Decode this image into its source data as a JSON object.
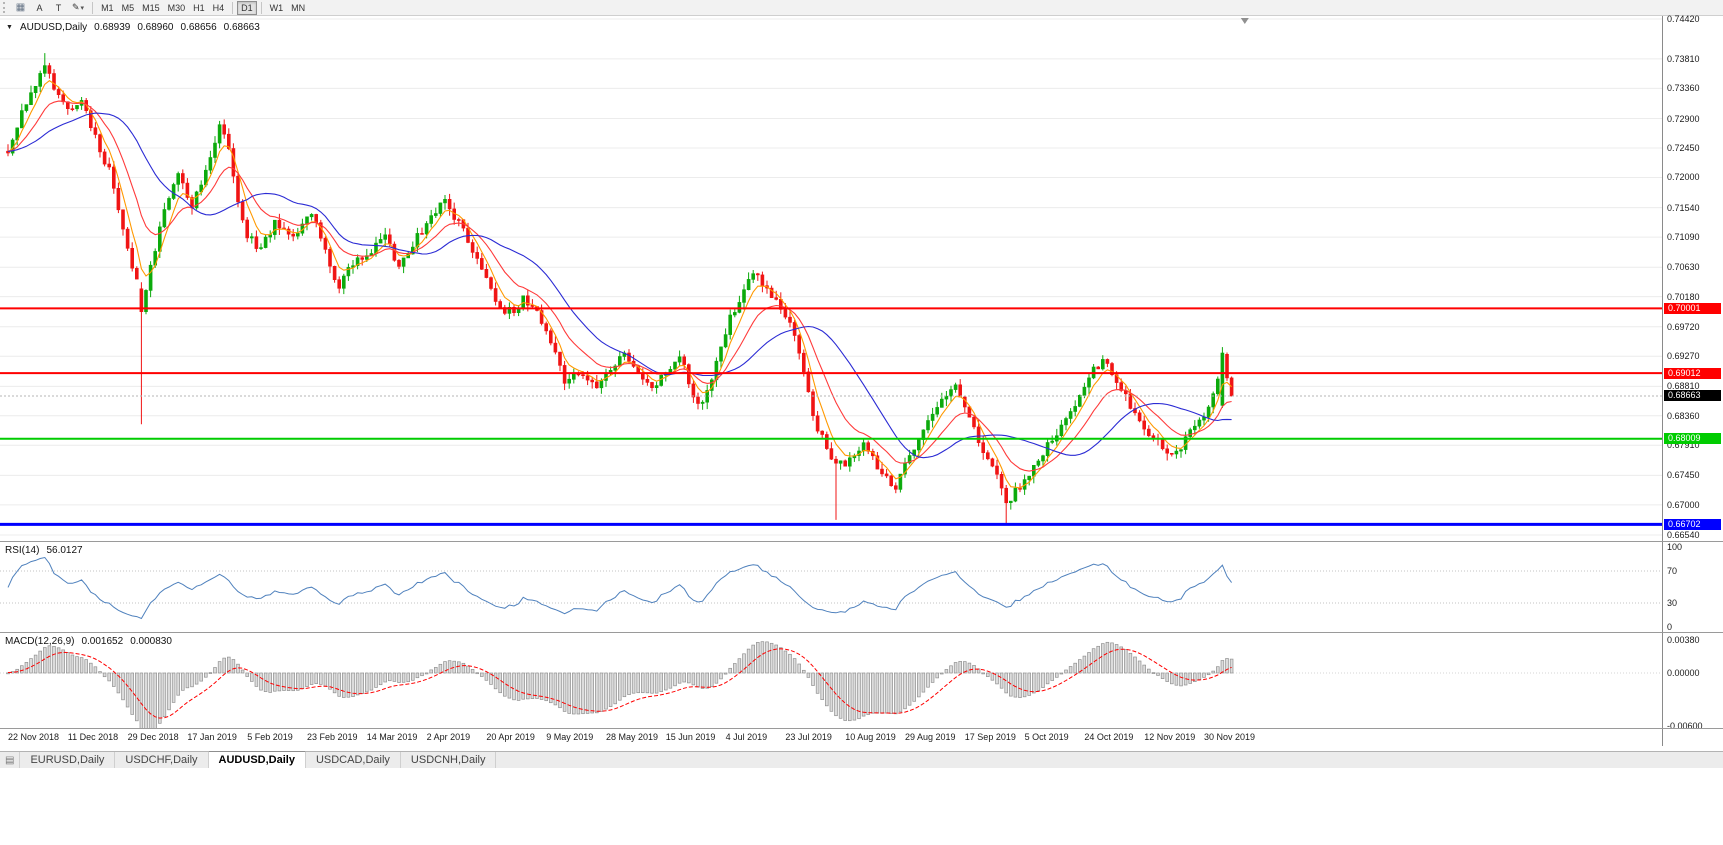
{
  "toolbar": {
    "icons": [
      {
        "name": "bar-chart-icon",
        "glyph": "▦"
      },
      {
        "name": "cursor-a-tool",
        "glyph": "A"
      },
      {
        "name": "text-tool",
        "glyph": "T"
      },
      {
        "name": "pencil-icon",
        "glyph": "✎"
      },
      {
        "name": "chevron-down-icon",
        "glyph": "▾"
      }
    ],
    "timeframes": [
      "M1",
      "M5",
      "M15",
      "M30",
      "H1",
      "H4",
      "D1",
      "W1",
      "MN"
    ],
    "active_timeframe": "D1"
  },
  "chart": {
    "collapse_glyph": "▼",
    "title": {
      "symbol": "AUDUSD,Daily",
      "open": "0.68939",
      "high": "0.68960",
      "low": "0.68656",
      "close": "0.68663"
    },
    "price_axis": [
      "0.74420",
      "0.73810",
      "0.73360",
      "0.72900",
      "0.72450",
      "0.72000",
      "0.71540",
      "0.71090",
      "0.70630",
      "0.70180",
      "0.69720",
      "0.69270",
      "0.68810",
      "0.68360",
      "0.67910",
      "0.67450",
      "0.67000",
      "0.66540"
    ],
    "levels": [
      {
        "price": 0.70001,
        "label": "0.70001",
        "color": "#ff0000",
        "width": 2
      },
      {
        "price": 0.69012,
        "label": "0.69012",
        "color": "#ff0000",
        "width": 2
      },
      {
        "price": 0.68009,
        "label": "0.68009",
        "color": "#00cc00",
        "width": 2
      },
      {
        "price": 0.66702,
        "label": "0.66702",
        "color": "#0000ff",
        "width": 3
      }
    ],
    "current_price": {
      "value": 0.68663,
      "label": "0.68663",
      "bg": "#000000"
    },
    "colors": {
      "bull": "#0caa0c",
      "bear": "#f01414",
      "ma_fast": "#ff9900",
      "ma_mid": "#ff3b3b",
      "ma_slow": "#2b2bd4",
      "grid": "#ececec",
      "bid_line": "#b5b5b5"
    }
  },
  "chart_data": {
    "type": "candlestick",
    "symbol": "AUDUSD",
    "timeframe": "Daily",
    "count": 267,
    "price_range": [
      0.6654,
      0.7442
    ],
    "x_labels": [
      "22 Nov 2018",
      "11 Dec 2018",
      "29 Dec 2018",
      "17 Jan 2019",
      "5 Feb 2019",
      "23 Feb 2019",
      "14 Mar 2019",
      "2 Apr 2019",
      "20 Apr 2019",
      "9 May 2019",
      "28 May 2019",
      "15 Jun 2019",
      "4 Jul 2019",
      "23 Jul 2019",
      "10 Aug 2019",
      "29 Aug 2019",
      "17 Sep 2019",
      "5 Oct 2019",
      "24 Oct 2019",
      "12 Nov 2019",
      "30 Nov 2019"
    ],
    "bars_per_label": 13,
    "anchors": [
      [
        0,
        0.724
      ],
      [
        3,
        0.73
      ],
      [
        6,
        0.734
      ],
      [
        8,
        0.7375
      ],
      [
        10,
        0.733
      ],
      [
        13,
        0.73
      ],
      [
        16,
        0.732
      ],
      [
        19,
        0.726
      ],
      [
        22,
        0.721
      ],
      [
        25,
        0.712
      ],
      [
        28,
        0.704
      ],
      [
        29,
        0.6995
      ],
      [
        31,
        0.706
      ],
      [
        34,
        0.715
      ],
      [
        37,
        0.72
      ],
      [
        40,
        0.716
      ],
      [
        43,
        0.721
      ],
      [
        46,
        0.728
      ],
      [
        48,
        0.725
      ],
      [
        50,
        0.716
      ],
      [
        52,
        0.711
      ],
      [
        55,
        0.709
      ],
      [
        58,
        0.713
      ],
      [
        62,
        0.711
      ],
      [
        66,
        0.715
      ],
      [
        69,
        0.709
      ],
      [
        72,
        0.703
      ],
      [
        75,
        0.707
      ],
      [
        79,
        0.709
      ],
      [
        82,
        0.711
      ],
      [
        85,
        0.706
      ],
      [
        88,
        0.71
      ],
      [
        92,
        0.714
      ],
      [
        95,
        0.7165
      ],
      [
        98,
        0.713
      ],
      [
        101,
        0.709
      ],
      [
        104,
        0.705
      ],
      [
        107,
        0.7
      ],
      [
        110,
        0.6995
      ],
      [
        112,
        0.7015
      ],
      [
        115,
        0.6995
      ],
      [
        118,
        0.695
      ],
      [
        121,
        0.6885
      ],
      [
        124,
        0.6905
      ],
      [
        128,
        0.6885
      ],
      [
        131,
        0.6905
      ],
      [
        134,
        0.693
      ],
      [
        137,
        0.69
      ],
      [
        140,
        0.6875
      ],
      [
        143,
        0.6905
      ],
      [
        146,
        0.693
      ],
      [
        148,
        0.689
      ],
      [
        150,
        0.685
      ],
      [
        152,
        0.687
      ],
      [
        154,
        0.692
      ],
      [
        157,
        0.6985
      ],
      [
        160,
        0.703
      ],
      [
        162,
        0.7055
      ],
      [
        164,
        0.704
      ],
      [
        167,
        0.701
      ],
      [
        169,
        0.699
      ],
      [
        171,
        0.6955
      ],
      [
        173,
        0.69
      ],
      [
        175,
        0.6835
      ],
      [
        178,
        0.6785
      ],
      [
        180,
        0.676
      ],
      [
        182,
        0.6765
      ],
      [
        184,
        0.678
      ],
      [
        186,
        0.679
      ],
      [
        188,
        0.677
      ],
      [
        190,
        0.6745
      ],
      [
        193,
        0.673
      ],
      [
        195,
        0.676
      ],
      [
        197,
        0.6785
      ],
      [
        199,
        0.6815
      ],
      [
        202,
        0.6845
      ],
      [
        204,
        0.687
      ],
      [
        206,
        0.688
      ],
      [
        208,
        0.6855
      ],
      [
        210,
        0.6815
      ],
      [
        212,
        0.6785
      ],
      [
        215,
        0.6745
      ],
      [
        217,
        0.67
      ],
      [
        219,
        0.672
      ],
      [
        221,
        0.674
      ],
      [
        223,
        0.676
      ],
      [
        226,
        0.679
      ],
      [
        228,
        0.681
      ],
      [
        230,
        0.683
      ],
      [
        232,
        0.6855
      ],
      [
        234,
        0.688
      ],
      [
        236,
        0.6905
      ],
      [
        238,
        0.692
      ],
      [
        241,
        0.689
      ],
      [
        243,
        0.6865
      ],
      [
        245,
        0.684
      ],
      [
        247,
        0.682
      ],
      [
        249,
        0.68
      ],
      [
        252,
        0.6785
      ],
      [
        254,
        0.678
      ],
      [
        256,
        0.68
      ],
      [
        258,
        0.682
      ],
      [
        260,
        0.684
      ],
      [
        262,
        0.6865
      ],
      [
        264,
        0.693
      ],
      [
        265,
        0.6894
      ],
      [
        266,
        0.68663
      ]
    ],
    "overrides": {
      "8": {
        "h": 0.739
      },
      "29": {
        "o": 0.703,
        "c": 0.6995,
        "h": 0.704,
        "l": 0.6823
      },
      "180": {
        "l": 0.6677
      },
      "217": {
        "l": 0.667
      },
      "264": {
        "o": 0.6852,
        "c": 0.6932,
        "h": 0.6941,
        "l": 0.6848
      },
      "265": {
        "o": 0.693,
        "c": 0.6894
      },
      "266": {
        "o": 0.68939,
        "h": 0.6896,
        "l": 0.68656,
        "c": 0.68663
      }
    },
    "moving_averages": [
      {
        "type": "ema",
        "period": 5,
        "color_key": "ma_fast"
      },
      {
        "type": "ema",
        "period": 13,
        "color_key": "ma_mid"
      },
      {
        "type": "sma",
        "period": 24,
        "color_key": "ma_slow"
      }
    ]
  },
  "rsi": {
    "name": "RSI(14)",
    "value": "56.0127",
    "period": 14,
    "axis": [
      "100",
      "70",
      "30",
      "0"
    ],
    "grid_levels": [
      70,
      30
    ],
    "color": "#4f81bd"
  },
  "macd": {
    "name": "MACD(12,26,9)",
    "macd_value": "0.001652",
    "signal_value": "0.000830",
    "fast": 12,
    "slow": 26,
    "signal": 9,
    "axis": [
      {
        "v": 0.0038,
        "label": "0.00380"
      },
      {
        "v": 0.0,
        "label": "0.00000"
      },
      {
        "v": -0.006,
        "label": "-0.00600"
      }
    ],
    "histogram_fill": "#dcdcdc",
    "histogram_stroke": "#8f8f8f",
    "signal_color": "#ff0000"
  },
  "tabs": [
    {
      "label": "EURUSD,Daily",
      "active": false
    },
    {
      "label": "USDCHF,Daily",
      "active": false
    },
    {
      "label": "AUDUSD,Daily",
      "active": true
    },
    {
      "label": "USDCAD,Daily",
      "active": false
    },
    {
      "label": "USDCNH,Daily",
      "active": false
    }
  ]
}
